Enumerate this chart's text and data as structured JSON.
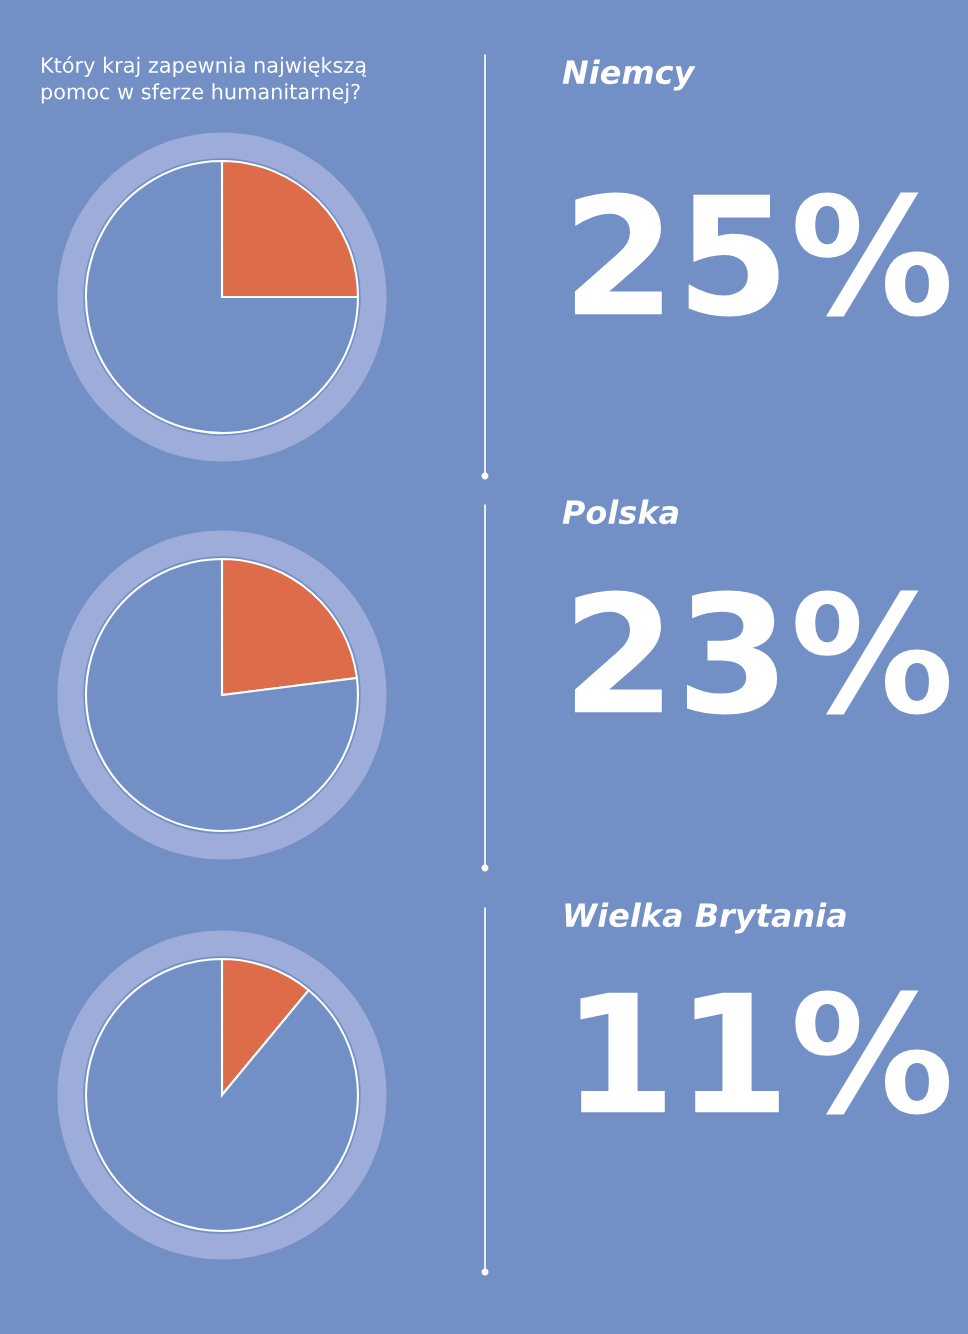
{
  "chart_data": [
    {
      "type": "pie",
      "title": "Niemcy",
      "categories": [
        null,
        null
      ],
      "values": [
        25,
        75
      ],
      "colors": [
        "#dc6c4a",
        "#7390c6"
      ],
      "value_labels": [
        "25%",
        null
      ],
      "annotations": [
        "Który kraj zapewnia największą\npomoc w sferze humanitarnej?"
      ]
    },
    {
      "type": "pie",
      "title": "Polska",
      "categories": [
        null,
        null
      ],
      "values": [
        23,
        77
      ],
      "colors": [
        "#dc6c4a",
        "#7390c6"
      ],
      "value_labels": [
        "23%",
        null
      ]
    },
    {
      "type": "pie",
      "title": "Wielka Brytania",
      "categories": [
        null,
        null
      ],
      "values": [
        11,
        89
      ],
      "colors": [
        "#dc6c4a",
        "#7390c6"
      ],
      "value_labels": [
        "11%",
        null
      ]
    }
  ]
}
